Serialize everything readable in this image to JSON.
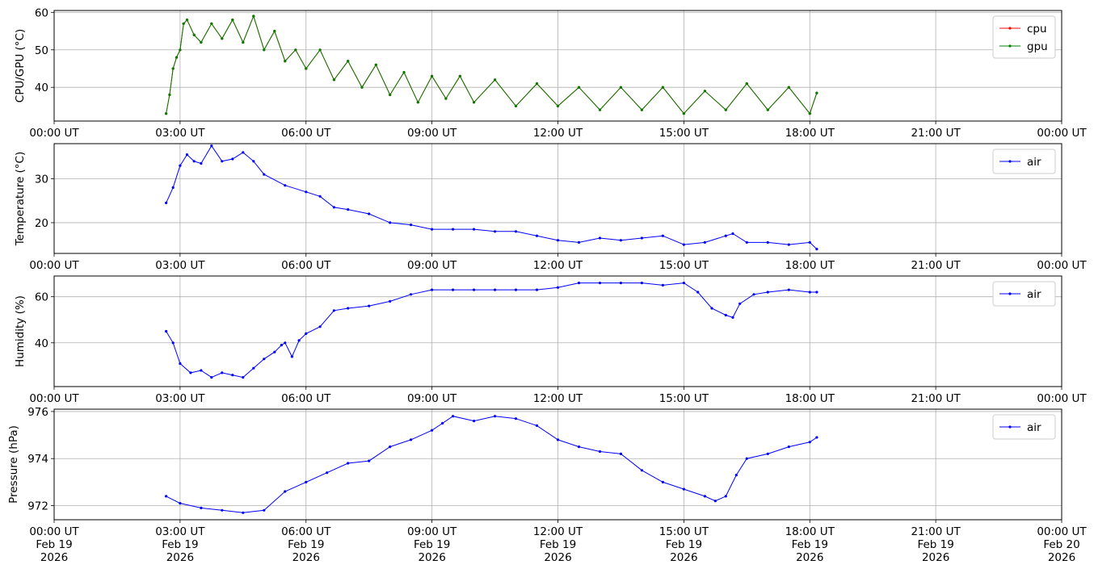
{
  "chart_data": [
    {
      "type": "line",
      "ylabel": "CPU/GPU (°C)",
      "xlim": [
        "00:00",
        "24:00"
      ],
      "ylim": [
        31,
        60.5
      ],
      "yticks": [
        40,
        50,
        60
      ],
      "grid": true,
      "legend": "top-right",
      "x_ticks": [
        "00:00 UT",
        "03:00 UT",
        "06:00 UT",
        "09:00 UT",
        "12:00 UT",
        "15:00 UT",
        "18:00 UT",
        "21:00 UT",
        "00:00 UT"
      ],
      "series": [
        {
          "name": "cpu",
          "color": "#ff0000",
          "x": [
            "02:40",
            "02:45",
            "02:50",
            "02:55",
            "03:00",
            "03:05",
            "03:10",
            "03:20",
            "03:30",
            "03:45",
            "04:00",
            "04:15",
            "04:30",
            "04:45",
            "05:00",
            "05:15",
            "05:30",
            "05:45",
            "06:00",
            "06:20",
            "06:40",
            "07:00",
            "07:20",
            "07:40",
            "08:00",
            "08:20",
            "08:40",
            "09:00",
            "09:20",
            "09:40",
            "10:00",
            "10:30",
            "11:00",
            "11:30",
            "12:00",
            "12:30",
            "13:00",
            "13:30",
            "14:00",
            "14:30",
            "15:00",
            "15:30",
            "16:00",
            "16:30",
            "17:00",
            "17:30",
            "18:00",
            "18:10"
          ],
          "values": [
            33,
            38,
            45,
            48,
            50,
            57,
            58,
            54,
            52,
            57,
            53,
            58,
            52,
            59,
            50,
            55,
            47,
            50,
            45,
            50,
            42,
            47,
            40,
            46,
            38,
            44,
            36,
            43,
            37,
            43,
            36,
            42,
            35,
            41,
            35,
            40,
            34,
            40,
            34,
            40,
            33,
            39,
            34,
            41,
            34,
            40,
            33,
            38.5
          ]
        },
        {
          "name": "gpu",
          "color": "#008000",
          "x": [
            "02:40",
            "02:45",
            "02:50",
            "02:55",
            "03:00",
            "03:05",
            "03:10",
            "03:20",
            "03:30",
            "03:45",
            "04:00",
            "04:15",
            "04:30",
            "04:45",
            "05:00",
            "05:15",
            "05:30",
            "05:45",
            "06:00",
            "06:20",
            "06:40",
            "07:00",
            "07:20",
            "07:40",
            "08:00",
            "08:20",
            "08:40",
            "09:00",
            "09:20",
            "09:40",
            "10:00",
            "10:30",
            "11:00",
            "11:30",
            "12:00",
            "12:30",
            "13:00",
            "13:30",
            "14:00",
            "14:30",
            "15:00",
            "15:30",
            "16:00",
            "16:30",
            "17:00",
            "17:30",
            "18:00",
            "18:10"
          ],
          "values": [
            33,
            38,
            45,
            48,
            50,
            57,
            58,
            54,
            52,
            57,
            53,
            58,
            52,
            59,
            50,
            55,
            47,
            50,
            45,
            50,
            42,
            47,
            40,
            46,
            38,
            44,
            36,
            43,
            37,
            43,
            36,
            42,
            35,
            41,
            35,
            40,
            34,
            40,
            34,
            40,
            33,
            39,
            34,
            41,
            34,
            40,
            33,
            38.5
          ]
        }
      ]
    },
    {
      "type": "line",
      "ylabel": "Temperature (°C)",
      "xlim": [
        "00:00",
        "24:00"
      ],
      "ylim": [
        13,
        38
      ],
      "yticks": [
        20,
        30
      ],
      "grid": true,
      "legend": "top-right",
      "x_ticks": [
        "00:00 UT",
        "03:00 UT",
        "06:00 UT",
        "09:00 UT",
        "12:00 UT",
        "15:00 UT",
        "18:00 UT",
        "21:00 UT",
        "00:00 UT"
      ],
      "series": [
        {
          "name": "air",
          "color": "#0000ff",
          "x": [
            "02:40",
            "02:50",
            "03:00",
            "03:10",
            "03:20",
            "03:30",
            "03:45",
            "04:00",
            "04:15",
            "04:30",
            "04:45",
            "05:00",
            "05:30",
            "06:00",
            "06:20",
            "06:40",
            "07:00",
            "07:30",
            "08:00",
            "08:30",
            "09:00",
            "09:30",
            "10:00",
            "10:30",
            "11:00",
            "11:30",
            "12:00",
            "12:30",
            "13:00",
            "13:30",
            "14:00",
            "14:30",
            "15:00",
            "15:30",
            "16:00",
            "16:10",
            "16:30",
            "17:00",
            "17:30",
            "18:00",
            "18:10"
          ],
          "values": [
            24.5,
            28,
            33,
            35.5,
            34,
            33.5,
            37.5,
            34,
            34.5,
            36,
            34,
            31,
            28.5,
            27,
            26,
            23.5,
            23,
            22,
            20,
            19.5,
            18.5,
            18.5,
            18.5,
            18,
            18,
            17,
            16,
            15.5,
            16.5,
            16,
            16.5,
            17,
            15,
            15.5,
            17,
            17.5,
            15.5,
            15.5,
            15,
            15.5,
            14
          ]
        }
      ]
    },
    {
      "type": "line",
      "ylabel": "Humidity (%)",
      "xlim": [
        "00:00",
        "24:00"
      ],
      "ylim": [
        21,
        69
      ],
      "yticks": [
        40,
        60
      ],
      "grid": true,
      "legend": "top-right",
      "x_ticks": [
        "00:00 UT",
        "03:00 UT",
        "06:00 UT",
        "09:00 UT",
        "12:00 UT",
        "15:00 UT",
        "18:00 UT",
        "21:00 UT",
        "00:00 UT"
      ],
      "series": [
        {
          "name": "air",
          "color": "#0000ff",
          "x": [
            "02:40",
            "02:50",
            "03:00",
            "03:15",
            "03:30",
            "03:45",
            "04:00",
            "04:15",
            "04:30",
            "04:45",
            "05:00",
            "05:15",
            "05:25",
            "05:30",
            "05:40",
            "05:50",
            "06:00",
            "06:20",
            "06:40",
            "07:00",
            "07:30",
            "08:00",
            "08:30",
            "09:00",
            "09:30",
            "10:00",
            "10:30",
            "11:00",
            "11:30",
            "12:00",
            "12:30",
            "13:00",
            "13:30",
            "14:00",
            "14:30",
            "15:00",
            "15:20",
            "15:40",
            "16:00",
            "16:10",
            "16:20",
            "16:40",
            "17:00",
            "17:30",
            "18:00",
            "18:10"
          ],
          "values": [
            45,
            40,
            31,
            27,
            28,
            25,
            27,
            26,
            25,
            29,
            33,
            36,
            39,
            40,
            34,
            41,
            44,
            47,
            54,
            55,
            56,
            58,
            61,
            63,
            63,
            63,
            63,
            63,
            63,
            64,
            66,
            66,
            66,
            66,
            65,
            66,
            62,
            55,
            52,
            51,
            57,
            61,
            62,
            63,
            62,
            62
          ]
        }
      ]
    },
    {
      "type": "line",
      "ylabel": "Pressure (hPa)",
      "xlim": [
        "00:00",
        "24:00"
      ],
      "ylim": [
        971.4,
        976.1
      ],
      "yticks": [
        972,
        974,
        976
      ],
      "grid": true,
      "legend": "top-right",
      "x_ticks": [
        "00:00 UT\nFeb 19\n2026",
        "03:00 UT\nFeb 19\n2026",
        "06:00 UT\nFeb 19\n2026",
        "09:00 UT\nFeb 19\n2026",
        "12:00 UT\nFeb 19\n2026",
        "15:00 UT\nFeb 19\n2026",
        "18:00 UT\nFeb 19\n2026",
        "21:00 UT\nFeb 19\n2026",
        "00:00 UT\nFeb 20\n2026"
      ],
      "series": [
        {
          "name": "air",
          "color": "#0000ff",
          "x": [
            "02:40",
            "03:00",
            "03:30",
            "04:00",
            "04:30",
            "05:00",
            "05:30",
            "06:00",
            "06:30",
            "07:00",
            "07:30",
            "08:00",
            "08:30",
            "09:00",
            "09:15",
            "09:30",
            "10:00",
            "10:30",
            "11:00",
            "11:30",
            "12:00",
            "12:30",
            "13:00",
            "13:30",
            "14:00",
            "14:30",
            "15:00",
            "15:30",
            "15:45",
            "16:00",
            "16:15",
            "16:30",
            "17:00",
            "17:30",
            "18:00",
            "18:10"
          ],
          "values": [
            972.4,
            972.1,
            971.9,
            971.8,
            971.7,
            971.8,
            972.6,
            973.0,
            973.4,
            973.8,
            973.9,
            974.5,
            974.8,
            975.2,
            975.5,
            975.8,
            975.6,
            975.8,
            975.7,
            975.4,
            974.8,
            974.5,
            974.3,
            974.2,
            973.5,
            973.0,
            972.7,
            972.4,
            972.2,
            972.4,
            973.3,
            974.0,
            974.2,
            974.5,
            974.7,
            974.9
          ]
        }
      ]
    }
  ]
}
